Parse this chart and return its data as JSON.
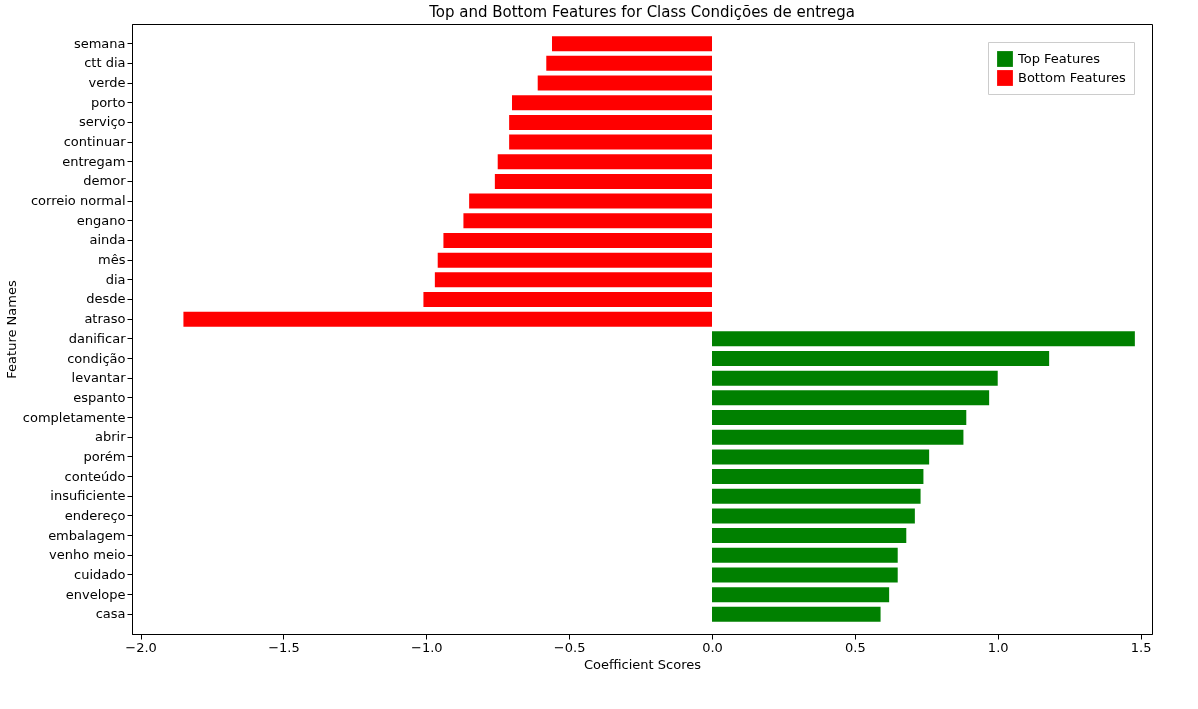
{
  "chart_data": {
    "type": "bar",
    "orientation": "horizontal",
    "title": "Top and Bottom Features for Class Condições de entrega",
    "xlabel": "Coefficient Scores",
    "ylabel": "Feature Names",
    "categories": [
      "semana",
      "ctt dia",
      "verde",
      "porto",
      "serviço",
      "continuar",
      "entregam",
      "demor",
      "correio normal",
      "engano",
      "ainda",
      "mês",
      "dia",
      "desde",
      "atraso",
      "danificar",
      "condição",
      "levantar",
      "espanto",
      "completamente",
      "abrir",
      "porém",
      "conteúdo",
      "insuficiente",
      "endereço",
      "embalagem",
      "venho meio",
      "cuidado",
      "envelope",
      "casa"
    ],
    "series": [
      {
        "name": "Top Features",
        "color": "#008000",
        "values": [
          null,
          null,
          null,
          null,
          null,
          null,
          null,
          null,
          null,
          null,
          null,
          null,
          null,
          null,
          null,
          1.48,
          1.18,
          1.0,
          0.97,
          0.89,
          0.88,
          0.76,
          0.74,
          0.73,
          0.71,
          0.68,
          0.65,
          0.65,
          0.62,
          0.59
        ]
      },
      {
        "name": "Bottom Features",
        "color": "#ff0000",
        "values": [
          -0.56,
          -0.58,
          -0.61,
          -0.7,
          -0.71,
          -0.71,
          -0.75,
          -0.76,
          -0.85,
          -0.87,
          -0.94,
          -0.96,
          -0.97,
          -1.01,
          -1.85,
          null,
          null,
          null,
          null,
          null,
          null,
          null,
          null,
          null,
          null,
          null,
          null,
          null,
          null,
          null
        ]
      }
    ],
    "xlim": [
      -2.03,
      1.54
    ],
    "xticks": [
      {
        "value": -2.0,
        "label": "−2.0"
      },
      {
        "value": -1.5,
        "label": "−1.5"
      },
      {
        "value": -1.0,
        "label": "−1.0"
      },
      {
        "value": -0.5,
        "label": "−0.5"
      },
      {
        "value": 0.0,
        "label": "0.0"
      },
      {
        "value": 0.5,
        "label": "0.5"
      },
      {
        "value": 1.0,
        "label": "1.0"
      },
      {
        "value": 1.5,
        "label": "1.5"
      }
    ],
    "grid": false,
    "legend": "top right"
  }
}
